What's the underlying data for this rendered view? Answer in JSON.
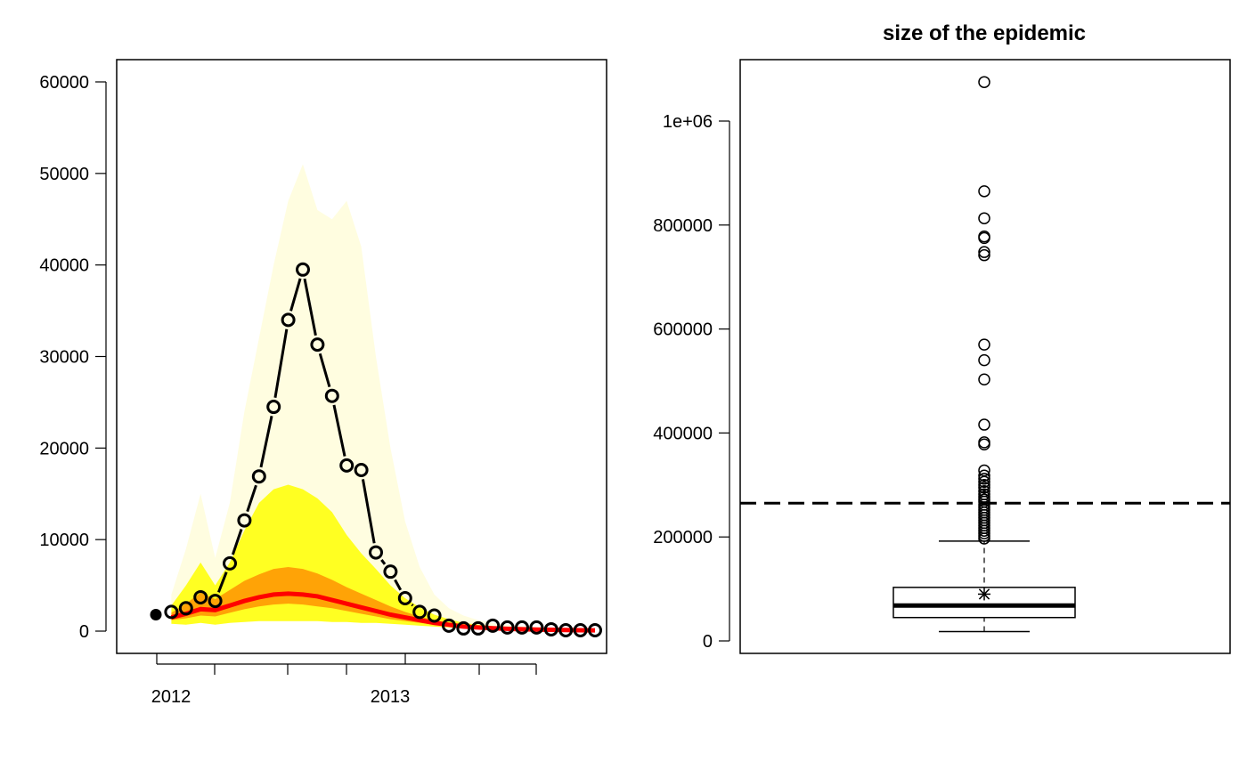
{
  "chart_data": [
    {
      "type": "line",
      "title": "",
      "xlabel": "",
      "ylabel": "",
      "ylim": [
        -2400,
        62400
      ],
      "y_ticks": [
        0,
        10000,
        20000,
        30000,
        40000,
        50000,
        60000
      ],
      "x_tick_labels": [
        "2012",
        "2013"
      ],
      "grid": false,
      "colors": {
        "band_outer": "#fffde0",
        "band_mid": "#ffff00",
        "band_inner": "#ff8c00",
        "median": "#ff0000",
        "points": "#000000",
        "points_fill": "#ffff00"
      },
      "observed_first": {
        "x": 0,
        "y": 1800
      },
      "observed": {
        "x": [
          1,
          2,
          3,
          4,
          5,
          6,
          7,
          8,
          9,
          10,
          11,
          12,
          13,
          14,
          15,
          16,
          17,
          18,
          19,
          20,
          21,
          22,
          23,
          24,
          25,
          26,
          27,
          28,
          29,
          30
        ],
        "y": [
          2100,
          2500,
          3700,
          3300,
          7400,
          12100,
          16900,
          24500,
          34000,
          39500,
          31300,
          25700,
          18100,
          17600,
          8600,
          6500,
          3600,
          2100,
          1700,
          600,
          300,
          300,
          600,
          400,
          400,
          400,
          200,
          100,
          100,
          100
        ]
      },
      "forecast_quantiles": {
        "x": [
          1,
          2,
          3,
          4,
          5,
          6,
          7,
          8,
          9,
          10,
          11,
          12,
          13,
          14,
          15,
          16,
          17,
          18,
          19,
          20,
          21,
          22,
          23,
          24,
          25,
          26,
          27,
          28,
          29,
          30
        ],
        "q01": [
          800,
          700,
          900,
          700,
          900,
          1000,
          1100,
          1100,
          1100,
          1100,
          1100,
          1000,
          1000,
          900,
          900,
          800,
          700,
          600,
          500,
          400,
          300,
          200,
          200,
          150,
          100,
          100,
          80,
          60,
          50,
          50
        ],
        "q25": [
          1200,
          1400,
          1700,
          1600,
          2000,
          2400,
          2700,
          2900,
          3000,
          2900,
          2700,
          2500,
          2200,
          1900,
          1600,
          1300,
          1100,
          900,
          700,
          550,
          400,
          300,
          250,
          200,
          160,
          130,
          110,
          90,
          80,
          70
        ],
        "q50": [
          1500,
          1900,
          2400,
          2300,
          2800,
          3300,
          3700,
          4000,
          4100,
          4000,
          3800,
          3400,
          3000,
          2600,
          2200,
          1800,
          1500,
          1200,
          900,
          700,
          500,
          400,
          320,
          260,
          210,
          170,
          140,
          120,
          100,
          90
        ],
        "q75": [
          2000,
          3000,
          4200,
          3500,
          4500,
          5500,
          6200,
          6800,
          7000,
          6800,
          6300,
          5600,
          4800,
          4100,
          3400,
          2700,
          2100,
          1600,
          1200,
          900,
          650,
          500,
          400,
          320,
          260,
          210,
          170,
          140,
          120,
          110
        ],
        "q90": [
          2800,
          5000,
          7500,
          5000,
          7500,
          11000,
          14000,
          15500,
          16000,
          15500,
          14500,
          13000,
          10500,
          8500,
          6800,
          5000,
          3600,
          2600,
          1800,
          1300,
          900,
          700,
          550,
          430,
          340,
          280,
          230,
          190,
          160,
          140
        ],
        "q99": [
          4000,
          9000,
          15000,
          8000,
          14000,
          24000,
          32000,
          40000,
          47000,
          51000,
          46000,
          45000,
          47000,
          42000,
          30000,
          20000,
          12000,
          7000,
          4000,
          2500,
          1700,
          1200,
          900,
          700,
          550,
          450,
          370,
          300,
          250,
          220
        ]
      }
    },
    {
      "type": "box",
      "title": "size of the epidemic",
      "xlabel": "",
      "ylabel": "",
      "ylim": [
        -25000,
        1115000
      ],
      "y_ticks": [
        0,
        200000,
        400000,
        600000,
        800000,
        1000000
      ],
      "y_tick_labels": [
        "0",
        "200000",
        "400000",
        "600000",
        "800000",
        "1e+06"
      ],
      "whisker_low": 18000,
      "q1": 45000,
      "median": 68000,
      "q3": 103000,
      "whisker_high": 192000,
      "mean": 90000,
      "observed_reference": 265000,
      "outliers": [
        1075000,
        865000,
        813000,
        778000,
        775000,
        748000,
        742000,
        570000,
        540000,
        503000,
        416000,
        382000,
        378000,
        328000,
        318000,
        312000,
        306000,
        300000,
        295000,
        288000,
        282000,
        277000,
        272000,
        268000,
        262000,
        257000,
        252000,
        247000,
        242000,
        237000,
        232000,
        227000,
        222000,
        217000,
        212000,
        207000,
        202000,
        197000
      ]
    }
  ]
}
